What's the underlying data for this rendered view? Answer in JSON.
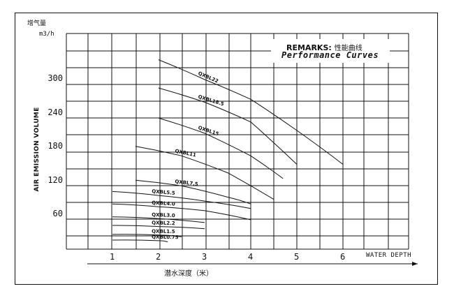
{
  "chart_data": {
    "type": "line",
    "title": "",
    "remarks_label": "REMARKS:",
    "remarks_cn": "性能曲线",
    "remarks_en": "Performance Curves",
    "unit_cn": "增气量",
    "unit": "m3/h",
    "ylabel": "AIR EMISSION VOLUME",
    "xlabel": "WATER DEPTH",
    "xlabel_cn": "潜水深度（米）",
    "xlim": [
      0,
      7.25
    ],
    "ylim": [
      0,
      360
    ],
    "yticks": [
      60,
      120,
      180,
      240,
      300
    ],
    "xticks": [
      1,
      2,
      3,
      4,
      5,
      6
    ],
    "grid": true,
    "series": [
      {
        "name": "QXBL22",
        "x": [
          2.0,
          3.0,
          4.0,
          5.0,
          6.0
        ],
        "y": [
          335,
          300,
          265,
          210,
          150
        ]
      },
      {
        "name": "QXBL18.5",
        "x": [
          2.0,
          3.0,
          4.0,
          5.0
        ],
        "y": [
          285,
          260,
          225,
          150
        ]
      },
      {
        "name": "QXBL15",
        "x": [
          2.0,
          3.0,
          4.0,
          4.7
        ],
        "y": [
          232,
          205,
          165,
          125
        ]
      },
      {
        "name": "QXBL11",
        "x": [
          1.5,
          2.5,
          3.5,
          4.5
        ],
        "y": [
          182,
          165,
          135,
          88
        ]
      },
      {
        "name": "QXBL7.5",
        "x": [
          1.5,
          2.5,
          3.5,
          4.0
        ],
        "y": [
          122,
          112,
          92,
          80
        ]
      },
      {
        "name": "QXBL5.5",
        "x": [
          1.0,
          2.0,
          3.0,
          4.0
        ],
        "y": [
          102,
          95,
          85,
          72
        ]
      },
      {
        "name": "QXBL4.0",
        "x": [
          1.0,
          2.0,
          3.0,
          4.0
        ],
        "y": [
          80,
          75,
          68,
          52
        ]
      },
      {
        "name": "QXBL3.0",
        "x": [
          1.0,
          2.0,
          3.0
        ],
        "y": [
          57,
          54,
          47
        ]
      },
      {
        "name": "QXBL2.2",
        "x": [
          1.0,
          2.0,
          3.0
        ],
        "y": [
          42,
          40,
          36
        ]
      },
      {
        "name": "QXBL1.5",
        "x": [
          1.0,
          2.0,
          2.5
        ],
        "y": [
          26,
          25,
          22
        ]
      },
      {
        "name": "QXBL0.75",
        "x": [
          1.0,
          2.0,
          2.2
        ],
        "y": [
          16,
          15,
          13
        ]
      }
    ]
  }
}
